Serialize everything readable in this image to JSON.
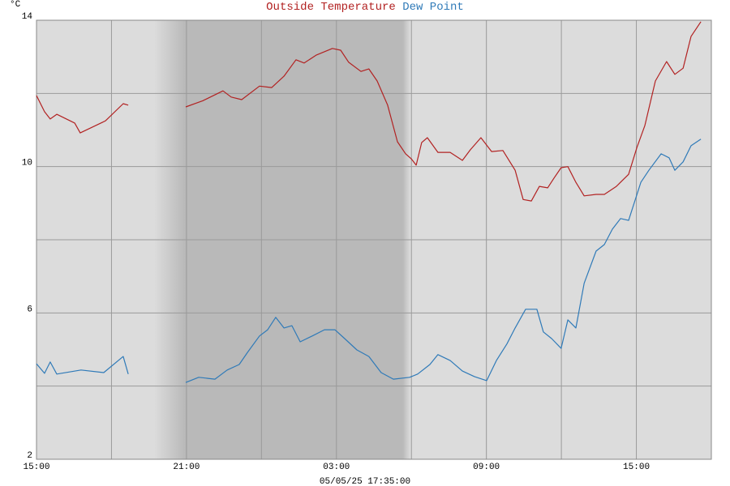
{
  "chart_data": {
    "type": "line",
    "unit_label": "°C",
    "footer": "05/05/25 17:35:00",
    "xlim": [
      0,
      27
    ],
    "xticks": [
      {
        "value": 0,
        "label": "15:00"
      },
      {
        "value": 3,
        "label": null
      },
      {
        "value": 6,
        "label": "21:00"
      },
      {
        "value": 9,
        "label": null
      },
      {
        "value": 12,
        "label": "03:00"
      },
      {
        "value": 15,
        "label": null
      },
      {
        "value": 18,
        "label": "09:00"
      },
      {
        "value": 21,
        "label": null
      },
      {
        "value": 24,
        "label": "15:00"
      }
    ],
    "ylim": [
      2,
      14
    ],
    "yticks": [
      2,
      {
        "value": 4,
        "label": null
      },
      6,
      {
        "value": 8,
        "label": null
      },
      10,
      {
        "value": 12,
        "label": null
      },
      14
    ],
    "grid": true,
    "series": [
      {
        "name": "Outside Temperature",
        "color": "#b22222",
        "x": [
          0,
          0.32,
          0.55,
          0.81,
          1.53,
          1.75,
          2.76,
          3.47,
          3.67,
          5,
          5.97,
          6.65,
          7.46,
          7.79,
          8.21,
          8.92,
          9.41,
          9.9,
          10.38,
          10.71,
          11.2,
          11.84,
          12.17,
          12.49,
          12.98,
          13.3,
          13.63,
          14.05,
          14.44,
          14.77,
          15.0,
          15.19,
          15.41,
          15.64,
          16.06,
          16.55,
          17.04,
          17.36,
          17.78,
          18.21,
          18.66,
          19.15,
          19.47,
          19.8,
          20.12,
          20.45,
          20.7,
          20.99,
          21.26,
          21.58,
          21.91,
          22.39,
          22.72,
          23.2,
          23.69,
          24.02,
          24.34,
          24.76,
          25.21,
          25.54,
          25.87,
          26.19,
          26.58
        ],
        "values": [
          11.94,
          11.5,
          11.3,
          11.43,
          11.19,
          10.92,
          11.25,
          11.72,
          11.68,
          null,
          11.63,
          11.8,
          12.07,
          11.9,
          11.83,
          12.2,
          12.16,
          12.47,
          12.92,
          12.83,
          13.05,
          13.23,
          13.18,
          12.85,
          12.6,
          12.67,
          12.34,
          11.68,
          10.68,
          10.35,
          10.21,
          10.04,
          10.66,
          10.79,
          10.39,
          10.39,
          10.17,
          10.46,
          10.79,
          10.41,
          10.44,
          9.9,
          9.1,
          9.06,
          9.46,
          9.42,
          9.68,
          9.97,
          10.0,
          9.57,
          9.2,
          9.24,
          9.24,
          9.46,
          9.79,
          10.52,
          11.12,
          12.34,
          12.87,
          12.52,
          12.69,
          13.56,
          13.96
        ]
      },
      {
        "name": "Dew Point",
        "color": "#2f7ab8",
        "x": [
          0,
          0.32,
          0.55,
          0.81,
          1.78,
          2.69,
          3.47,
          3.67,
          5,
          5.97,
          6.49,
          7.14,
          7.63,
          8.11,
          8.44,
          8.92,
          9.25,
          9.57,
          9.9,
          10.22,
          10.55,
          11.03,
          11.52,
          11.94,
          12.33,
          12.82,
          13.3,
          13.79,
          14.28,
          14.93,
          15.25,
          15.74,
          16.06,
          16.55,
          17.04,
          17.52,
          18.01,
          18.4,
          18.82,
          19.15,
          19.57,
          20.02,
          20.28,
          20.61,
          20.99,
          21.26,
          21.58,
          21.91,
          22.39,
          22.72,
          23.04,
          23.37,
          23.69,
          23.92,
          24.18,
          24.5,
          24.99,
          25.31,
          25.54,
          25.87,
          26.19,
          26.58
        ],
        "values": [
          4.61,
          4.35,
          4.66,
          4.33,
          4.44,
          4.37,
          4.81,
          4.33,
          null,
          4.1,
          4.24,
          4.19,
          4.44,
          4.59,
          4.92,
          5.37,
          5.54,
          5.88,
          5.59,
          5.65,
          5.21,
          5.37,
          5.54,
          5.54,
          5.3,
          4.99,
          4.81,
          4.37,
          4.19,
          4.24,
          4.33,
          4.59,
          4.86,
          4.7,
          4.41,
          4.26,
          4.15,
          4.7,
          5.15,
          5.59,
          6.1,
          6.1,
          5.48,
          5.3,
          5.03,
          5.81,
          5.59,
          6.81,
          7.69,
          7.87,
          8.29,
          8.58,
          8.53,
          9.02,
          9.57,
          9.9,
          10.35,
          10.24,
          9.9,
          10.13,
          10.57,
          10.75
        ]
      }
    ]
  }
}
